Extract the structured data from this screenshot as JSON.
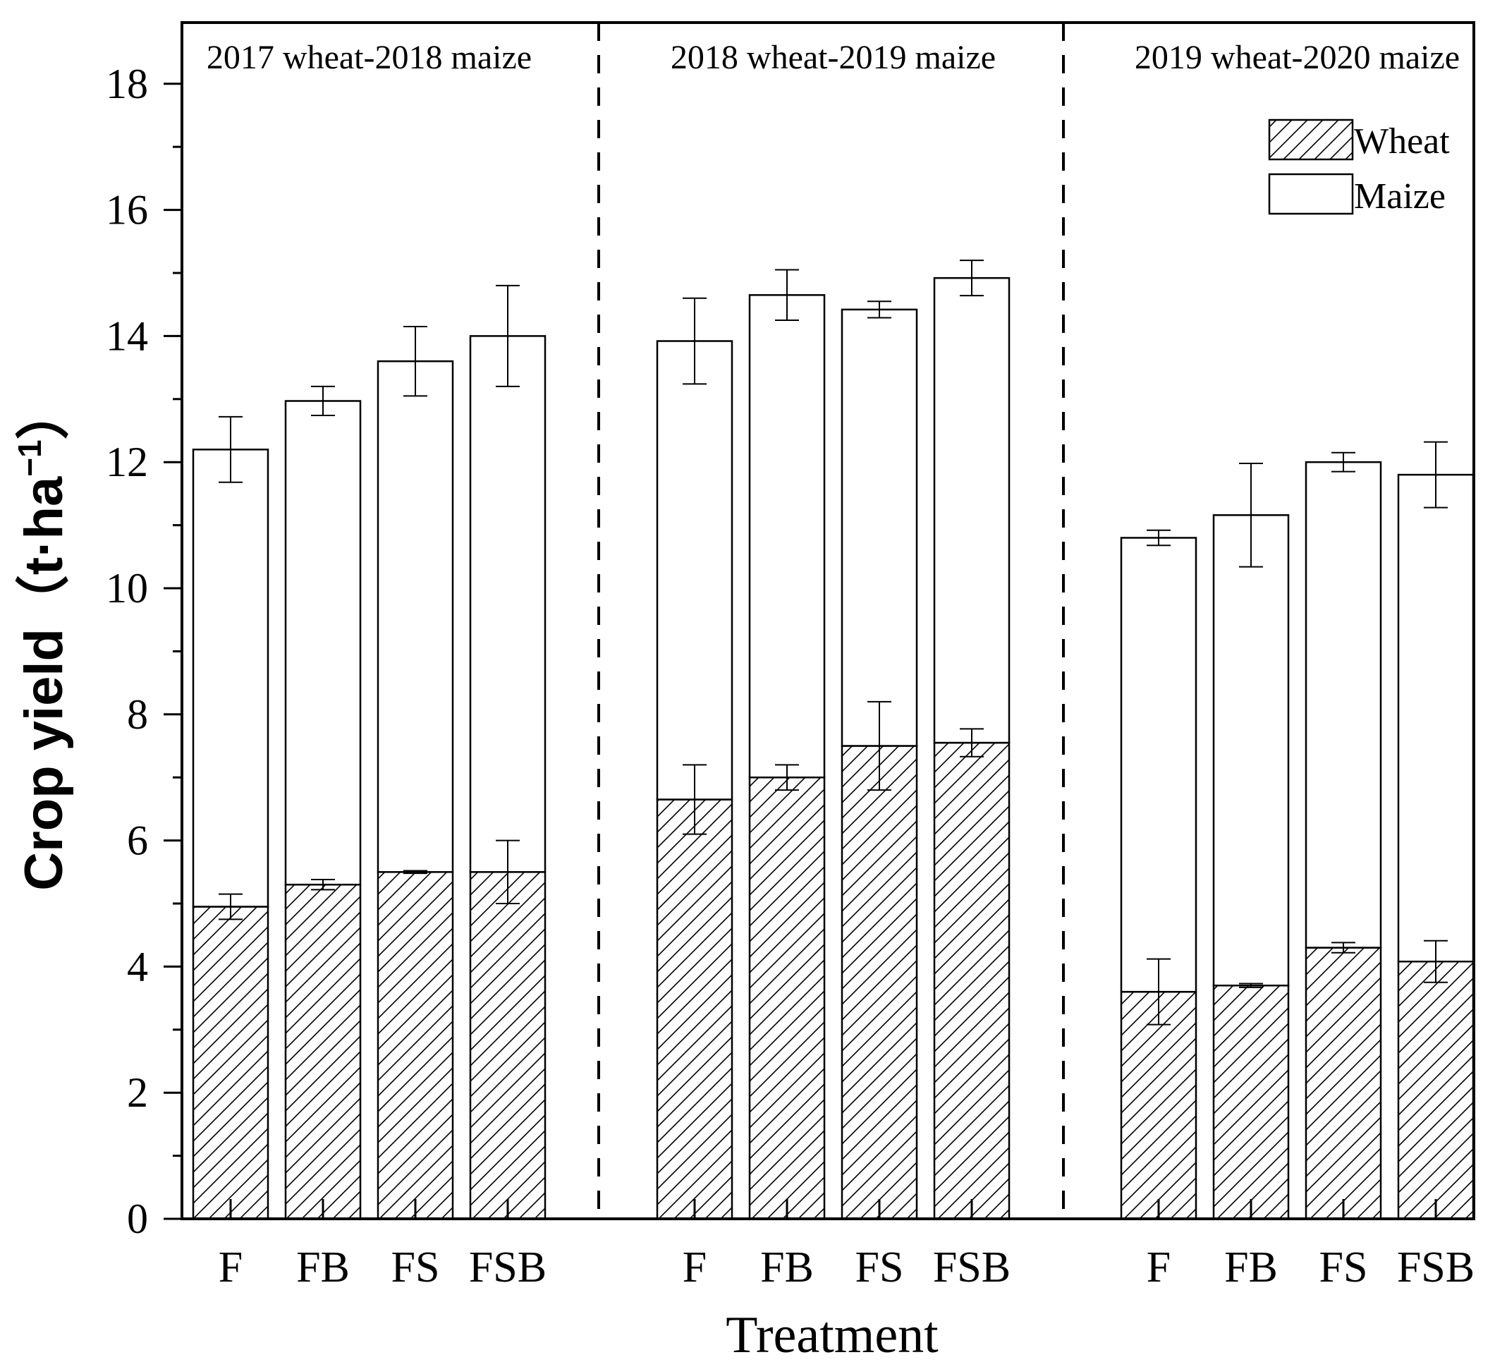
{
  "chart_data": {
    "type": "bar",
    "stacked": true,
    "xlabel": "Treatment",
    "ylabel": "Crop yield（t·ha",
    "ylabel_sup": "−1",
    "ylabel_close": "）",
    "ylim": [
      0,
      19
    ],
    "yticks": [
      0,
      2,
      4,
      6,
      8,
      10,
      12,
      14,
      16,
      18
    ],
    "yticks_labels": [
      "0",
      "2",
      "4",
      "6",
      "8",
      "10",
      "12",
      "14",
      "16",
      "18"
    ],
    "legend": {
      "position": "top-right",
      "entries": [
        "Wheat",
        "Maize"
      ]
    },
    "groups": [
      {
        "title": "2017 wheat-2018 maize",
        "categories": [
          "F",
          "FB",
          "FS",
          "FSB"
        ],
        "wheat": [
          4.95,
          5.3,
          5.5,
          5.5
        ],
        "wheat_err": [
          0.2,
          0.08,
          0.02,
          0.5
        ],
        "total": [
          12.2,
          12.97,
          13.6,
          14.0
        ],
        "total_err": [
          0.52,
          0.23,
          0.55,
          0.8
        ]
      },
      {
        "title": "2018 wheat-2019 maize",
        "categories": [
          "F",
          "FB",
          "FS",
          "FSB"
        ],
        "wheat": [
          6.65,
          7.0,
          7.5,
          7.55
        ],
        "wheat_err": [
          0.55,
          0.2,
          0.7,
          0.22
        ],
        "total": [
          13.92,
          14.65,
          14.42,
          14.92
        ],
        "total_err": [
          0.68,
          0.4,
          0.13,
          0.28
        ]
      },
      {
        "title": "2019 wheat-2020 maize",
        "categories": [
          "F",
          "FB",
          "FS",
          "FSB"
        ],
        "wheat": [
          3.6,
          3.7,
          4.3,
          4.08
        ],
        "wheat_err": [
          0.52,
          0.03,
          0.08,
          0.33
        ],
        "total": [
          10.8,
          11.16,
          12.0,
          11.8
        ],
        "total_err": [
          0.12,
          0.82,
          0.15,
          0.52
        ]
      }
    ],
    "series": [
      {
        "name": "Wheat",
        "pattern": "hatched"
      },
      {
        "name": "Maize",
        "pattern": "open"
      }
    ],
    "colors": {
      "stroke": "#000000",
      "fill": "#ffffff"
    }
  }
}
